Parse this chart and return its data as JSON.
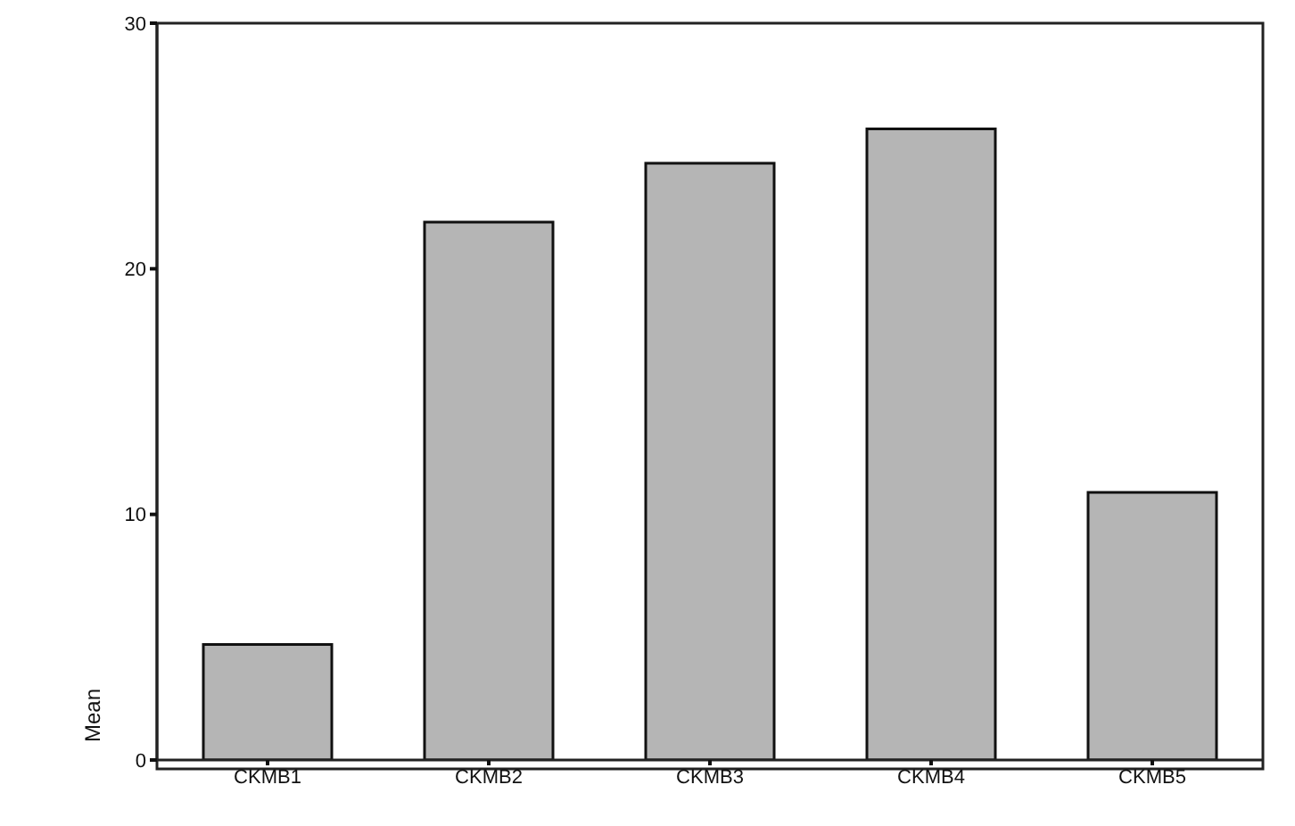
{
  "chart_data": {
    "type": "bar",
    "ylabel": "Mean",
    "categories": [
      "CKMB1",
      "CKMB2",
      "CKMB3",
      "CKMB4",
      "CKMB5"
    ],
    "values": [
      4.7,
      21.9,
      24.3,
      25.7,
      10.9
    ],
    "color": "#b5b5b5",
    "ylim": [
      0,
      30
    ],
    "yticks": [
      0,
      10,
      20,
      30
    ],
    "grid": false
  }
}
